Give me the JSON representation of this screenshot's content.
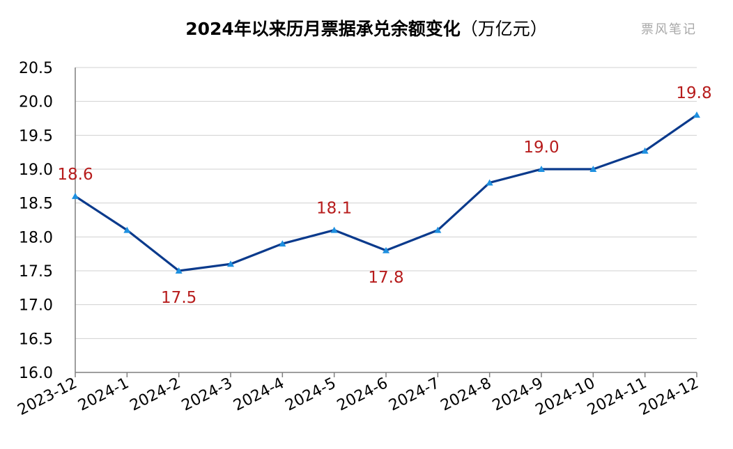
{
  "chart_data": {
    "type": "line",
    "title": "2024年以来历月票据承兑余额变化",
    "title_unit": "（万亿元）",
    "watermark": "票风笔记",
    "categories": [
      "2023-12",
      "2024-1",
      "2024-2",
      "2024-3",
      "2024-4",
      "2024-5",
      "2024-6",
      "2024-7",
      "2024-8",
      "2024-9",
      "2024-10",
      "2024-11",
      "2024-12"
    ],
    "series": [
      {
        "values": [
          18.6,
          18.1,
          17.5,
          17.6,
          17.9,
          18.1,
          17.8,
          18.1,
          18.8,
          19.0,
          19.0,
          19.27,
          19.8
        ]
      }
    ],
    "data_labels": [
      {
        "index": 0,
        "text": "18.6",
        "position": "above"
      },
      {
        "index": 2,
        "text": "17.5",
        "position": "below"
      },
      {
        "index": 5,
        "text": "18.1",
        "position": "above"
      },
      {
        "index": 6,
        "text": "17.8",
        "position": "below"
      },
      {
        "index": 9,
        "text": "19.0",
        "position": "above"
      },
      {
        "index": 12,
        "text": "19.8",
        "position": "above"
      }
    ],
    "yticks": [
      "16.0",
      "16.5",
      "17.0",
      "17.5",
      "18.0",
      "18.5",
      "19.0",
      "19.5",
      "20.0",
      "20.5"
    ],
    "ylim": [
      16.0,
      20.5
    ],
    "grid": true,
    "legend": "none",
    "colors": {
      "line": "#0a3a8c",
      "marker": "#1e90e0",
      "label": "#b71c1c",
      "grid": "#d0d0d0",
      "axis": "#7f7f7f"
    }
  }
}
